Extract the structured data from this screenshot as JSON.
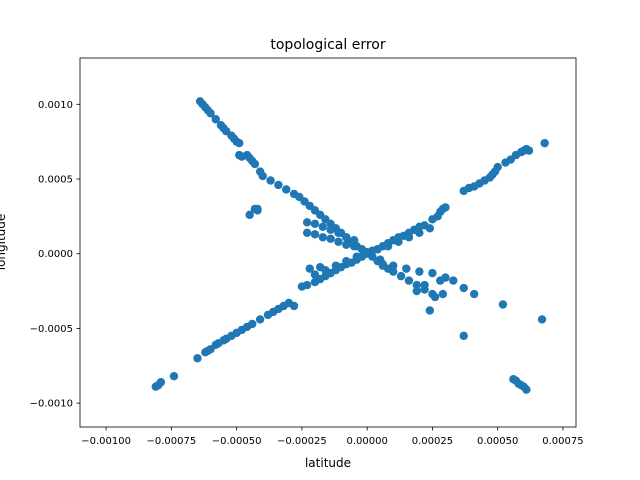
{
  "chart_data": {
    "type": "scatter",
    "title": "topological error",
    "xlabel": "latitude",
    "ylabel": "longitude",
    "xlim": [
      -0.0011,
      0.0008
    ],
    "ylim": [
      -0.00116,
      0.00131
    ],
    "x_ticks": [
      -0.001,
      -0.00075,
      -0.0005,
      -0.00025,
      0.0,
      0.00025,
      0.0005,
      0.00075
    ],
    "x_tick_labels": [
      "−0.00100",
      "−0.00075",
      "−0.00050",
      "−0.00025",
      "0.00000",
      "0.00025",
      "0.00050",
      "0.00075"
    ],
    "y_ticks": [
      -0.001,
      -0.0005,
      0.0,
      0.0005,
      0.001
    ],
    "y_tick_labels": [
      "−0.0010",
      "−0.0005",
      "0.0000",
      "0.0005",
      "0.0010"
    ],
    "grid": false,
    "marker_color": "#1f77b4",
    "series": [
      {
        "points": [
          [
            -0.00064,
            0.00102
          ],
          [
            -0.00063,
            0.001
          ],
          [
            -0.00062,
            0.00098
          ],
          [
            -0.00061,
            0.00096
          ],
          [
            -0.0006,
            0.00094
          ],
          [
            -0.00058,
            0.0009
          ],
          [
            -0.00056,
            0.00086
          ],
          [
            -0.00055,
            0.00084
          ],
          [
            -0.00054,
            0.00082
          ],
          [
            -0.00052,
            0.00079
          ],
          [
            -0.00051,
            0.00077
          ],
          [
            -0.0005,
            0.00075
          ],
          [
            -0.00049,
            0.00074
          ],
          [
            -0.00049,
            0.00066
          ],
          [
            -0.00048,
            0.00065
          ],
          [
            -0.00046,
            0.00066
          ],
          [
            -0.00045,
            0.00064
          ],
          [
            -0.00044,
            0.00062
          ],
          [
            -0.00043,
            0.0006
          ],
          [
            -0.00041,
            0.00055
          ],
          [
            -0.0004,
            0.00052
          ],
          [
            -0.00043,
            0.0003
          ],
          [
            -0.00042,
            0.00029
          ],
          [
            -0.00037,
            0.00049
          ],
          [
            -0.00034,
            0.00046
          ],
          [
            -0.00031,
            0.00043
          ],
          [
            -0.00028,
            0.0004
          ],
          [
            -0.00026,
            0.00038
          ],
          [
            -0.00024,
            0.00035
          ],
          [
            -0.00022,
            0.00032
          ],
          [
            -0.0002,
            0.00029
          ],
          [
            -0.00018,
            0.00026
          ],
          [
            -0.00016,
            0.00023
          ],
          [
            -0.00014,
            0.0002
          ],
          [
            -0.00012,
            0.00017
          ],
          [
            -0.0001,
            0.00014
          ],
          [
            -8e-05,
            0.00011
          ],
          [
            -6e-05,
            8e-05
          ],
          [
            -4e-05,
            5e-05
          ],
          [
            -2e-05,
            3e-05
          ],
          [
            0.0,
            1e-05
          ],
          [
            2e-05,
            -2e-05
          ],
          [
            4e-05,
            -5e-05
          ],
          [
            6e-05,
            -8e-05
          ],
          [
            -0.00023,
            0.00021
          ],
          [
            -0.0002,
            0.0002
          ],
          [
            -0.00017,
            0.00018
          ],
          [
            -0.00014,
            0.00016
          ],
          [
            -0.00011,
            0.00014
          ],
          [
            -8e-05,
            0.00011
          ],
          [
            -5e-05,
            9e-05
          ],
          [
            -0.00042,
            0.0003
          ],
          [
            -0.00045,
            0.00026
          ],
          [
            -0.00023,
            0.00014
          ],
          [
            -0.0002,
            0.00013
          ],
          [
            -0.00017,
            0.00011
          ],
          [
            -0.00014,
            0.0001
          ],
          [
            -0.00011,
            8e-05
          ],
          [
            -8e-05,
            6e-05
          ],
          [
            -5e-05,
            5e-05
          ],
          [
            6e-05,
            -7e-05
          ],
          [
            8e-05,
            -0.0001
          ],
          [
            0.0001,
            -0.00012
          ],
          [
            0.00013,
            -0.00015
          ],
          [
            0.00016,
            -0.00018
          ],
          [
            0.00019,
            -0.00021
          ],
          [
            0.00022,
            -0.00024
          ],
          [
            0.00025,
            -0.00027
          ],
          [
            5e-05,
            -4e-05
          ],
          [
            0.0001,
            -8e-05
          ],
          [
            0.00015,
            -0.0001
          ],
          [
            0.0002,
            -0.00012
          ],
          [
            0.00025,
            -0.00013
          ],
          [
            0.0003,
            -0.00016
          ],
          [
            0.00033,
            -0.00018
          ],
          [
            0.00028,
            -0.00018
          ],
          [
            0.00022,
            -0.00021
          ],
          [
            0.00019,
            -0.00025
          ],
          [
            0.00026,
            -0.00029
          ],
          [
            0.00029,
            -0.00027
          ],
          [
            0.00024,
            -0.00038
          ],
          [
            0.00037,
            -0.00023
          ],
          [
            0.00041,
            -0.00027
          ],
          [
            0.00052,
            -0.00034
          ],
          [
            0.00037,
            -0.00055
          ],
          [
            0.00056,
            -0.00084
          ],
          [
            0.00057,
            -0.00085
          ],
          [
            0.00058,
            -0.00087
          ],
          [
            0.00059,
            -0.00088
          ],
          [
            0.0006,
            -0.00089
          ],
          [
            0.00061,
            -0.00091
          ],
          [
            0.00067,
            -0.00044
          ]
        ]
      },
      {
        "points": [
          [
            -0.00081,
            -0.00089
          ],
          [
            -0.0008,
            -0.00088
          ],
          [
            -0.00079,
            -0.00086
          ],
          [
            -0.00074,
            -0.00082
          ],
          [
            -0.00065,
            -0.0007
          ],
          [
            -0.00062,
            -0.00066
          ],
          [
            -0.00061,
            -0.00065
          ],
          [
            -0.0006,
            -0.00064
          ],
          [
            -0.00058,
            -0.00061
          ],
          [
            -0.00057,
            -0.0006
          ],
          [
            -0.00055,
            -0.00058
          ],
          [
            -0.00054,
            -0.00057
          ],
          [
            -0.00052,
            -0.00055
          ],
          [
            -0.0005,
            -0.00053
          ],
          [
            -0.00048,
            -0.00051
          ],
          [
            -0.00046,
            -0.00049
          ],
          [
            -0.00044,
            -0.00047
          ],
          [
            -0.00041,
            -0.00044
          ],
          [
            -0.00038,
            -0.00041
          ],
          [
            -0.00036,
            -0.00039
          ],
          [
            -0.00034,
            -0.00037
          ],
          [
            -0.00032,
            -0.00035
          ],
          [
            -0.0003,
            -0.00033
          ],
          [
            -0.00028,
            -0.00035
          ],
          [
            -0.00025,
            -0.00022
          ],
          [
            -0.00023,
            -0.00021
          ],
          [
            -0.0002,
            -0.00019
          ],
          [
            -0.00018,
            -0.00017
          ],
          [
            -0.00016,
            -0.00015
          ],
          [
            -0.00014,
            -0.00013
          ],
          [
            -0.00012,
            -0.00011
          ],
          [
            -0.0001,
            -9e-05
          ],
          [
            -8e-05,
            -7e-05
          ],
          [
            -6e-05,
            -6e-05
          ],
          [
            -4e-05,
            -4e-05
          ],
          [
            -2e-05,
            -2e-05
          ],
          [
            0.0,
            0.0
          ],
          [
            2e-05,
            2e-05
          ],
          [
            4e-05,
            3e-05
          ],
          [
            6e-05,
            5e-05
          ],
          [
            8e-05,
            7e-05
          ],
          [
            0.0001,
            9e-05
          ],
          [
            0.00012,
            0.00011
          ],
          [
            0.00014,
            0.00012
          ],
          [
            0.00016,
            0.00014
          ],
          [
            0.00018,
            0.00016
          ],
          [
            0.0002,
            0.00018
          ],
          [
            0.00022,
            0.00019
          ],
          [
            0.00025,
            0.00023
          ],
          [
            0.00027,
            0.00025
          ],
          [
            0.00028,
            0.00028
          ],
          [
            0.00029,
            0.0003
          ],
          [
            0.0003,
            0.00031
          ],
          [
            0.00037,
            0.00042
          ],
          [
            0.00039,
            0.00044
          ],
          [
            0.00041,
            0.00045
          ],
          [
            0.00043,
            0.00047
          ],
          [
            0.00045,
            0.00049
          ],
          [
            0.00047,
            0.00051
          ],
          [
            0.00048,
            0.00053
          ],
          [
            0.00049,
            0.00055
          ],
          [
            0.0005,
            0.00058
          ],
          [
            0.00053,
            0.00061
          ],
          [
            0.00055,
            0.00063
          ],
          [
            0.00057,
            0.00066
          ],
          [
            0.00059,
            0.00068
          ],
          [
            0.0006,
            0.00069
          ],
          [
            0.00061,
            0.0007
          ],
          [
            0.00062,
            0.00069
          ],
          [
            0.00068,
            0.00074
          ],
          [
            -0.0002,
            -0.00014
          ],
          [
            -0.00016,
            -0.00011
          ],
          [
            -0.00012,
            -8e-05
          ],
          [
            -8e-05,
            -5e-05
          ],
          [
            -4e-05,
            -2e-05
          ],
          [
            4e-05,
            3e-05
          ],
          [
            8e-05,
            5e-05
          ],
          [
            0.00012,
            8e-05
          ],
          [
            0.00016,
            0.00011
          ],
          [
            0.0002,
            0.00014
          ],
          [
            0.00024,
            0.00017
          ],
          [
            -0.00022,
            -0.0001
          ],
          [
            -0.00018,
            -9e-05
          ]
        ]
      }
    ]
  }
}
